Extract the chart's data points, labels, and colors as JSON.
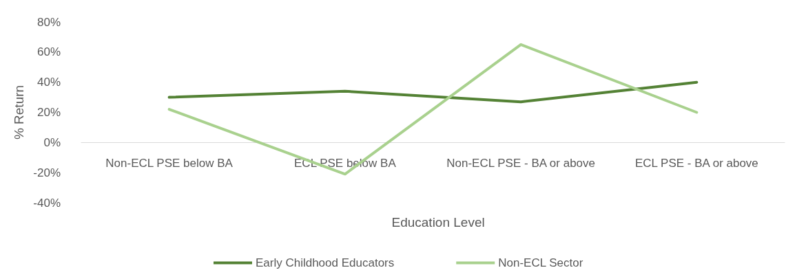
{
  "chart_data": {
    "type": "line",
    "xlabel": "Education Level",
    "ylabel": "% Return",
    "categories": [
      "Non-ECL PSE below BA",
      "ECL PSE below BA",
      "Non-ECL PSE - BA or above",
      "ECL PSE - BA or above"
    ],
    "series": [
      {
        "name": "Early Childhood Educators",
        "color": "#548235",
        "values": [
          30,
          34,
          27,
          40
        ]
      },
      {
        "name": "Non-ECL Sector",
        "color": "#a9d18e",
        "values": [
          22,
          -21,
          65,
          20
        ]
      }
    ],
    "ylim": [
      -40,
      80
    ],
    "yticks": [
      {
        "value": -40,
        "label": "-40%"
      },
      {
        "value": -20,
        "label": "-20%"
      },
      {
        "value": 0,
        "label": "0%"
      },
      {
        "value": 20,
        "label": "20%"
      },
      {
        "value": 40,
        "label": "40%"
      },
      {
        "value": 60,
        "label": "60%"
      },
      {
        "value": 80,
        "label": "80%"
      }
    ],
    "grid": false,
    "legend": "bottom",
    "marker": "none",
    "line_style": "solid"
  }
}
